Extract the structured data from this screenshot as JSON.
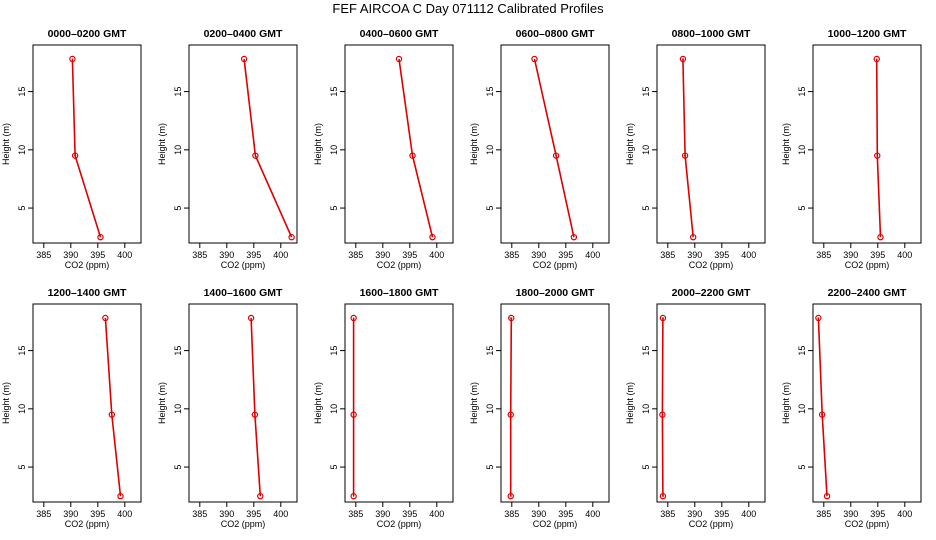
{
  "title": "FEF AIRCOA C  Day 071112  Calibrated Profiles",
  "colors": {
    "series": "#dd0000",
    "axes": "#000000",
    "background": "#ffffff"
  },
  "chart_data": {
    "type": "line",
    "layout": "2 rows x 6 columns",
    "xlabel": "CO2 (ppm)",
    "ylabel": "Height (m)",
    "xlim": [
      383,
      403
    ],
    "ylim": [
      2,
      19
    ],
    "xticks": [
      385,
      390,
      395,
      400
    ],
    "yticks": [
      5,
      10,
      15
    ],
    "panels": [
      {
        "title": "0000–0200 GMT",
        "co2": [
          395.5,
          390.8,
          390.3
        ],
        "height": [
          2.5,
          9.5,
          17.8
        ],
        "co2_low": [
          null,
          390.6,
          390.2
        ],
        "co2_high": [
          null,
          391.0,
          390.4
        ]
      },
      {
        "title": "0200–0400 GMT",
        "co2": [
          402.0,
          395.3,
          393.2
        ],
        "height": [
          2.5,
          9.5,
          17.8
        ],
        "co2_low": [
          null,
          null,
          null
        ],
        "co2_high": [
          null,
          null,
          null
        ]
      },
      {
        "title": "0400–0600 GMT",
        "co2": [
          399.2,
          395.5,
          393.0
        ],
        "height": [
          2.5,
          9.5,
          17.8
        ],
        "co2_low": [
          null,
          null,
          null
        ],
        "co2_high": [
          null,
          null,
          null
        ]
      },
      {
        "title": "0600–0800 GMT",
        "co2": [
          396.5,
          393.2,
          389.2
        ],
        "height": [
          2.5,
          9.5,
          17.8
        ],
        "co2_low": [
          null,
          null,
          null
        ],
        "co2_high": [
          null,
          null,
          null
        ]
      },
      {
        "title": "0800–1000 GMT",
        "co2": [
          389.7,
          388.2,
          387.8
        ],
        "height": [
          2.5,
          9.5,
          17.8
        ],
        "co2_low": [
          null,
          388.0,
          387.6
        ],
        "co2_high": [
          null,
          388.4,
          388.0
        ]
      },
      {
        "title": "1000–1200 GMT",
        "co2": [
          395.5,
          394.9,
          394.8
        ],
        "height": [
          2.5,
          9.5,
          17.8
        ],
        "co2_low": [
          null,
          394.8,
          394.7
        ],
        "co2_high": [
          null,
          395.0,
          394.9
        ]
      },
      {
        "title": "1200–1400 GMT",
        "co2": [
          399.2,
          397.6,
          396.4
        ],
        "height": [
          2.5,
          9.5,
          17.8
        ],
        "co2_low": [
          null,
          null,
          null
        ],
        "co2_high": [
          null,
          null,
          null
        ]
      },
      {
        "title": "1400–1600 GMT",
        "co2": [
          396.2,
          395.2,
          394.5
        ],
        "height": [
          2.5,
          9.5,
          17.8
        ],
        "co2_low": [
          null,
          null,
          null
        ],
        "co2_high": [
          null,
          null,
          null
        ]
      },
      {
        "title": "1600–1800 GMT",
        "co2": [
          384.6,
          384.6,
          384.6
        ],
        "height": [
          2.5,
          9.5,
          17.8
        ],
        "co2_low": [
          384.5,
          384.5,
          384.5
        ],
        "co2_high": [
          384.7,
          384.7,
          384.7
        ]
      },
      {
        "title": "1800–2000 GMT",
        "co2": [
          384.8,
          384.8,
          384.9
        ],
        "height": [
          2.5,
          9.5,
          17.8
        ],
        "co2_low": [
          384.6,
          384.6,
          384.6
        ],
        "co2_high": [
          385.0,
          385.0,
          385.1
        ]
      },
      {
        "title": "2000–2200 GMT",
        "co2": [
          384.1,
          384.0,
          384.1
        ],
        "height": [
          2.5,
          9.5,
          17.8
        ],
        "co2_low": [
          383.9,
          383.9,
          383.9
        ],
        "co2_high": [
          384.3,
          384.2,
          384.3
        ]
      },
      {
        "title": "2200–2400 GMT",
        "co2": [
          385.6,
          384.7,
          384.0
        ],
        "height": [
          2.5,
          9.5,
          17.8
        ],
        "co2_low": [
          null,
          384.5,
          383.8
        ],
        "co2_high": [
          null,
          384.9,
          384.2
        ]
      }
    ]
  }
}
